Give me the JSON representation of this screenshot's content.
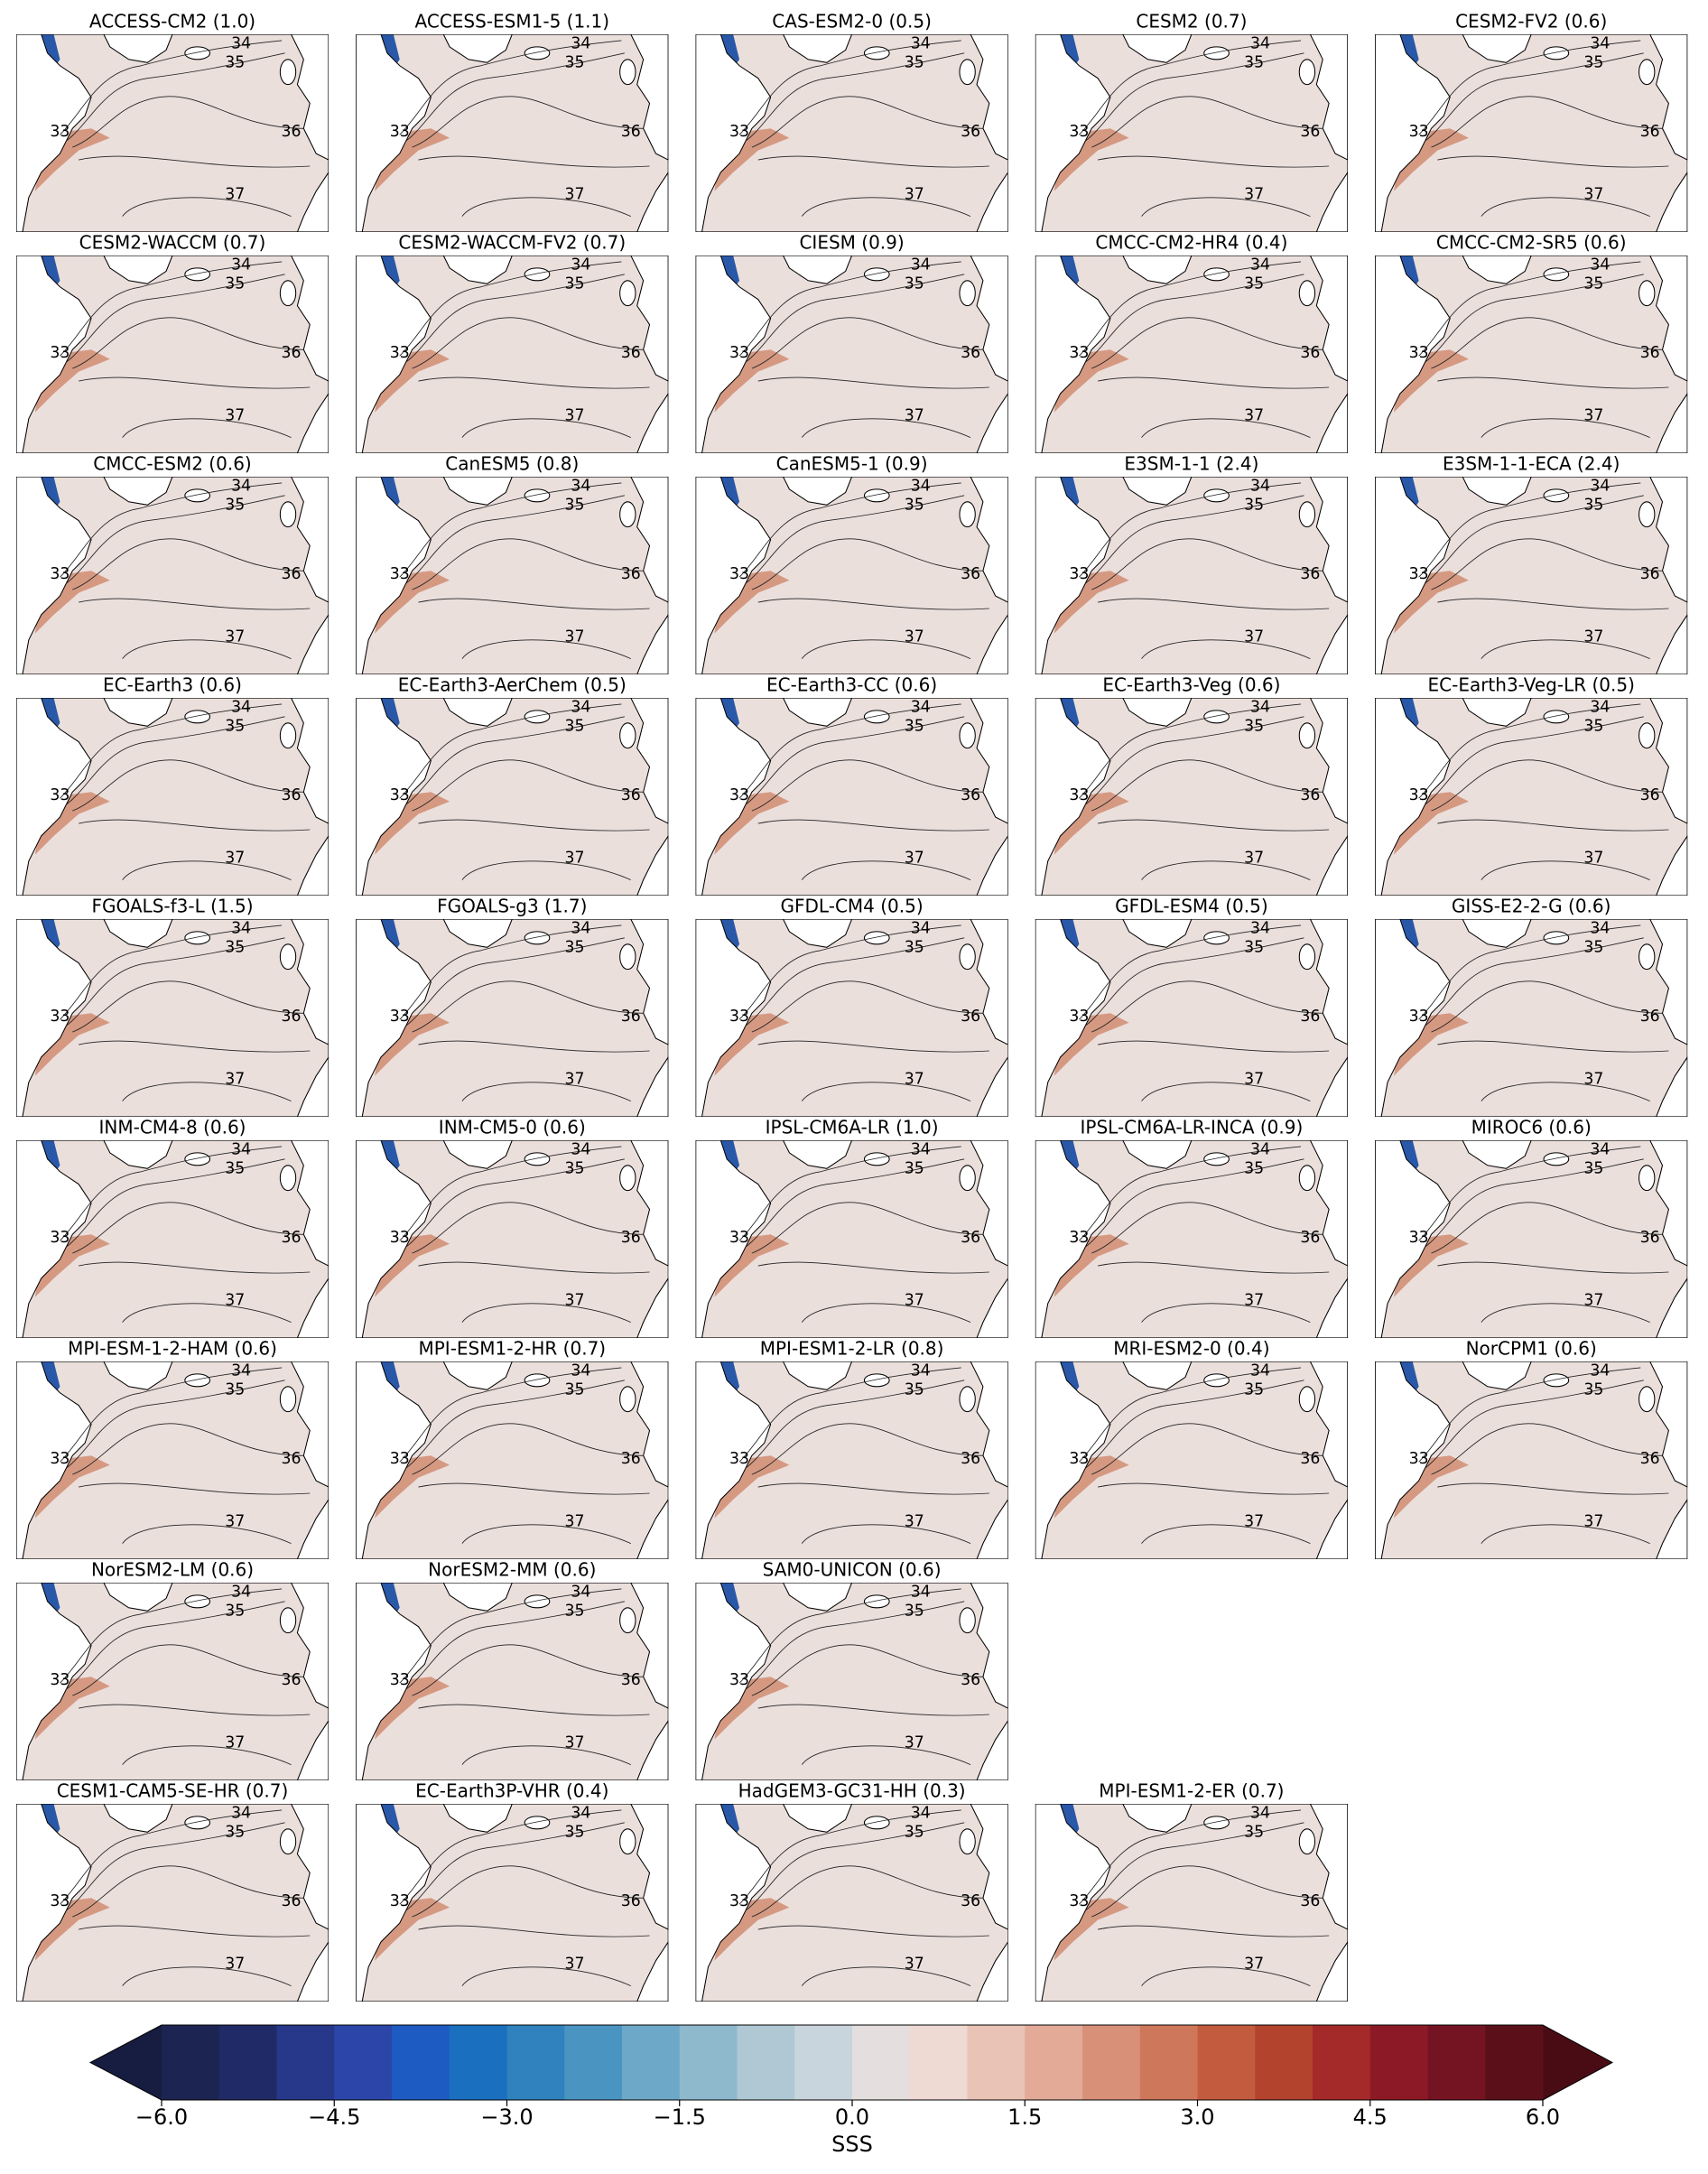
{
  "chart_data": {
    "type": "map",
    "rows": [
      [
        "ACCESS-CM2 (1.0)",
        "ACCESS-ESM1-5 (1.1)",
        "CAS-ESM2-0 (0.5)",
        "CESM2 (0.7)",
        "CESM2-FV2 (0.6)"
      ],
      [
        "CESM2-WACCM (0.7)",
        "CESM2-WACCM-FV2 (0.7)",
        "CIESM (0.9)",
        "CMCC-CM2-HR4 (0.4)",
        "CMCC-CM2-SR5 (0.6)"
      ],
      [
        "CMCC-ESM2 (0.6)",
        "CanESM5 (0.8)",
        "CanESM5-1 (0.9)",
        "E3SM-1-1 (2.4)",
        "E3SM-1-1-ECA (2.4)"
      ],
      [
        "EC-Earth3 (0.6)",
        "EC-Earth3-AerChem (0.5)",
        "EC-Earth3-CC (0.6)",
        "EC-Earth3-Veg (0.6)",
        "EC-Earth3-Veg-LR (0.5)"
      ],
      [
        "FGOALS-f3-L (1.5)",
        "FGOALS-g3 (1.7)",
        "GFDL-CM4 (0.5)",
        "GFDL-ESM4 (0.5)",
        "GISS-E2-2-G (0.6)"
      ],
      [
        "INM-CM4-8 (0.6)",
        "INM-CM5-0 (0.6)",
        "IPSL-CM6A-LR (1.0)",
        "IPSL-CM6A-LR-INCA (0.9)",
        "MIROC6 (0.6)"
      ],
      [
        "MPI-ESM-1-2-HAM (0.6)",
        "MPI-ESM1-2-HR (0.7)",
        "MPI-ESM1-2-LR (0.8)",
        "MRI-ESM2-0 (0.4)",
        "NorCPM1 (0.6)"
      ],
      [
        "NorESM2-LM (0.6)",
        "NorESM2-MM (0.6)",
        "SAM0-UNICON (0.6)"
      ],
      [
        "CESM1-CAM5-SE-HR (0.7)",
        "EC-Earth3P-VHR (0.4)",
        "HadGEM3-GC31-HH (0.3)",
        "MPI-ESM1-2-ER (0.7)"
      ]
    ],
    "contour_levels": [
      33,
      34,
      35,
      36,
      37
    ],
    "colorbar": {
      "label": "SSS",
      "lim": [
        -6,
        6
      ],
      "ticks": [
        {
          "value": -6,
          "label": "−6.0"
        },
        {
          "value": -4.5,
          "label": "−4.5"
        },
        {
          "value": -3,
          "label": "−3.0"
        },
        {
          "value": -1.5,
          "label": "−1.5"
        },
        {
          "value": 0,
          "label": "0.0"
        },
        1.5,
        {
          "value": 3,
          "label": "3.0"
        },
        4.5,
        {
          "value": 6,
          "label": "6.0"
        }
      ],
      "boundaries": [
        -6,
        -5.5,
        -5,
        -4.5,
        -4,
        -3.5,
        -3,
        -2.5,
        -2,
        -1.5,
        -1,
        -0.5,
        0,
        0.5,
        1,
        1.5,
        2,
        2.5,
        3,
        3.5,
        4,
        4.5,
        5,
        5.5,
        6
      ],
      "colors": [
        "#1c2452",
        "#202a66",
        "#273789",
        "#2b46a8",
        "#1d5bc2",
        "#1a6fbf",
        "#2f82bd",
        "#4a94c1",
        "#6ea8c8",
        "#8eb9cd",
        "#afc8d4",
        "#c9d5dd",
        "#e4dfde",
        "#efd9d3",
        "#e8c3b6",
        "#e2aa97",
        "#d99079",
        "#cf775b",
        "#c35c3f",
        "#b4432e",
        "#a32a29",
        "#8c1a26",
        "#741422",
        "#5b1019"
      ],
      "extend_colors": [
        "#171d40",
        "#4a0c14"
      ]
    }
  }
}
